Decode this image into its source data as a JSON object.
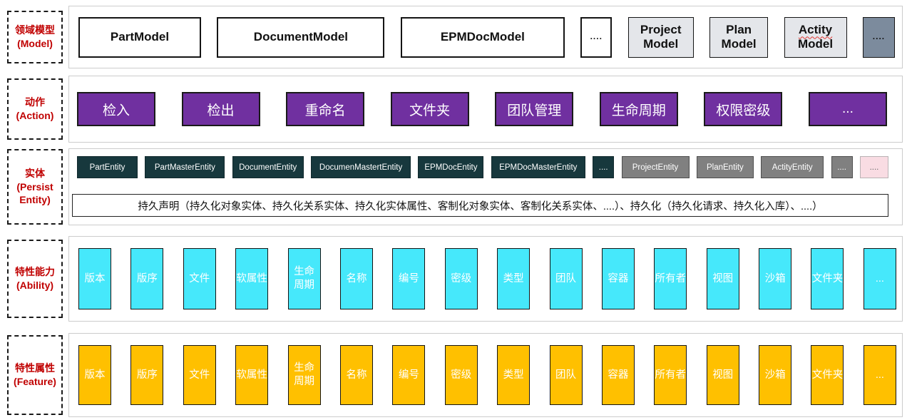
{
  "colors": {
    "label_red": "#C00000",
    "action_purple": "#7030A0",
    "entity_dark_teal": "#17383D",
    "entity_gray": "#808080",
    "entity_pink": "#F9DCE3",
    "model_slate": "#7C8B9D",
    "model_light_gray": "#E4E6EA",
    "ability_cyan": "#46E8FB",
    "feature_orange": "#FFC000"
  },
  "row_labels": {
    "model": "领域模型\n(Model)",
    "action": "动作\n(Action)",
    "entity": "实体\n(Persist\nEntity)",
    "ability": "特性能力\n(Ability)",
    "feature": "特性属性\n(Feature)"
  },
  "model_row": {
    "items": [
      {
        "label": "PartModel",
        "variant": "white"
      },
      {
        "label": "DocumentModel",
        "variant": "white"
      },
      {
        "label": "EPMDocModel",
        "variant": "white"
      },
      {
        "label": "....",
        "variant": "white dots"
      },
      {
        "label": "Project Model",
        "variant": "light"
      },
      {
        "label": "Plan Model",
        "variant": "light"
      },
      {
        "lines": [
          "Actity",
          "Model"
        ],
        "misspelled_line": 0,
        "variant": "light"
      },
      {
        "label": "....",
        "variant": "slate dots"
      }
    ]
  },
  "action_row": {
    "items": [
      "检入",
      "检出",
      "重命名",
      "文件夹",
      "团队管理",
      "生命周期",
      "权限密级",
      "..."
    ]
  },
  "entity_row": {
    "chips": [
      {
        "label": "PartEntity",
        "variant": "dark"
      },
      {
        "label": "PartMasterEntity",
        "variant": "dark"
      },
      {
        "label": "DocumentEntity",
        "variant": "dark"
      },
      {
        "label": "DocumenMastertEntity",
        "variant": "dark"
      },
      {
        "label": "EPMDocEntity",
        "variant": "dark"
      },
      {
        "label": "EPMDocMasterEntity",
        "variant": "dark"
      },
      {
        "label": "....",
        "variant": "dark"
      },
      {
        "label": "ProjectEntity",
        "variant": "gray"
      },
      {
        "label": "PlanEntity",
        "variant": "gray"
      },
      {
        "label": "ActityEntity",
        "variant": "gray"
      },
      {
        "label": "....",
        "variant": "gray"
      },
      {
        "label": "....",
        "variant": "pink"
      }
    ],
    "statement": "持久声明（持久化对象实体、持久化关系实体、持久化实体属性、客制化对象实体、客制化关系实体、....）、持久化（持久化请求、持久化入库）、....）"
  },
  "ability_row": {
    "items": [
      "版本",
      "版序",
      "文件",
      "软属性",
      "生命\n周期",
      "名称",
      "编号",
      "密级",
      "类型",
      "团队",
      "容器",
      "所有者",
      "视图",
      "沙箱",
      "文件夹",
      "..."
    ]
  },
  "feature_row": {
    "items": [
      "版本",
      "版序",
      "文件",
      "软属性",
      "生命\n周期",
      "名称",
      "编号",
      "密级",
      "类型",
      "团队",
      "容器",
      "所有者",
      "视图",
      "沙箱",
      "文件夹",
      "..."
    ]
  }
}
